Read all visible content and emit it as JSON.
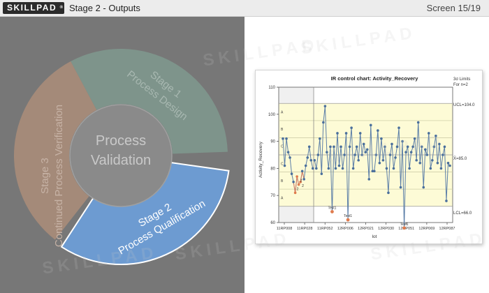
{
  "header": {
    "logo_text": "SKILLPAD",
    "logo_reg": "®",
    "title": "Stage 2 - Outputs",
    "screen_counter": "Screen 15/19"
  },
  "watermark_text": "SKILLPAD",
  "diagram": {
    "center_line1": "Process",
    "center_line2": "Validation",
    "stage1_line1": "Stage 1",
    "stage1_line2": "Process Design",
    "stage2_line1": "Stage 2",
    "stage2_line2": "Process Qualification",
    "stage3_line1": "Stage 3",
    "stage3_line2": "Continued Process Verification",
    "colors": {
      "stage1": "#7e948b",
      "stage2": "#6d9bd1",
      "stage3": "#a48a79",
      "hole": "#8a8a8a",
      "background": "#777777"
    }
  },
  "chart_data": {
    "type": "line",
    "title": "IR control chart: Activity_Recovery",
    "xlabel": "lot",
    "ylabel": "Activity_Recovery",
    "ylim": [
      60,
      110
    ],
    "yticks": [
      "60",
      "70",
      "80",
      "90",
      "100",
      "110"
    ],
    "xtick_labels": [
      "11RP008",
      "11RP028",
      "11RP052",
      "12RP006",
      "12RP021",
      "12RP030",
      "12RP051",
      "12RP069",
      "12RP087"
    ],
    "limits_header": [
      "3σ Limits",
      "For n=2"
    ],
    "ucl_label": "UCL=104.0",
    "center_label": "X̄=85.0",
    "lcl_label": "LCL=66.0",
    "ucl": 104.0,
    "center": 85.0,
    "lcl": 66.0,
    "zone_labels": [
      "A",
      "B",
      "C",
      "C",
      "B",
      "A"
    ],
    "point_labels": [
      "2",
      "2",
      "2",
      "Test1",
      "Test1",
      "Test1"
    ],
    "phase1_values": [
      91,
      81,
      91,
      86,
      84,
      78,
      75,
      71,
      77,
      74,
      75,
      79,
      76,
      81,
      84,
      88,
      83,
      80
    ],
    "phase2_values": [
      83,
      80,
      85,
      91,
      78,
      97,
      103,
      86,
      80,
      88,
      64,
      88,
      80,
      93,
      81,
      88,
      80,
      85,
      93,
      61,
      88,
      95,
      80,
      85,
      88,
      83,
      93,
      85,
      89,
      86,
      87,
      76,
      96,
      79,
      79,
      85,
      94,
      82,
      91,
      83,
      88,
      80,
      71,
      85,
      89,
      80,
      84,
      88,
      95,
      73,
      90,
      58,
      86,
      88,
      80,
      86,
      88,
      91,
      83,
      97,
      82,
      88,
      73,
      87,
      85,
      93,
      80,
      83,
      88,
      92,
      82,
      89,
      80,
      85,
      88,
      68,
      82,
      81
    ],
    "colors": {
      "line": "#5b7ea8",
      "point": "#4a6f9c",
      "phase1_line": "#d9785a",
      "flag": "#e07b4d",
      "zone": "#fdfbd6",
      "phase1_bg": "#f0f0f0"
    }
  }
}
